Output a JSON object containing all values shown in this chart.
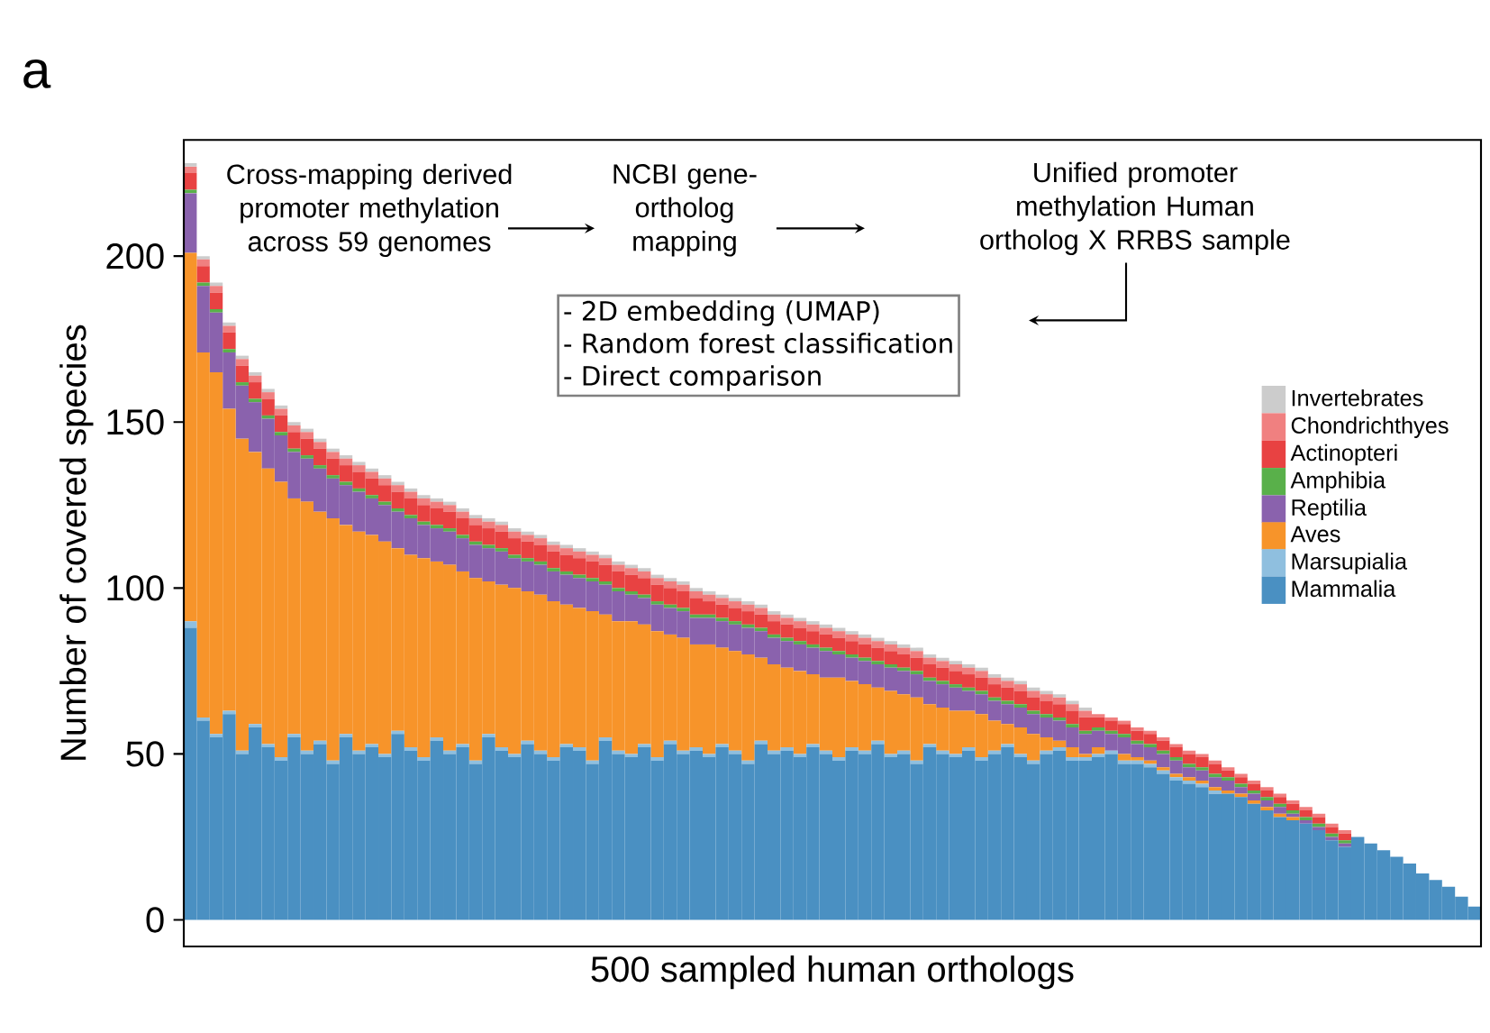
{
  "chart_data": {
    "type": "bar",
    "stacked": true,
    "xlabel": "500 sampled human orthologs",
    "ylabel": "Number of covered species",
    "categories": [
      null,
      null,
      null,
      null,
      null,
      null,
      null,
      null,
      null,
      null,
      null,
      null,
      null,
      null,
      null,
      null,
      null,
      null,
      null,
      null,
      null,
      null,
      null,
      null,
      null,
      null,
      null,
      null,
      null,
      null,
      null,
      null,
      null,
      null,
      null,
      null,
      null,
      null,
      null,
      null,
      null,
      null,
      null,
      null,
      null,
      null,
      null,
      null,
      null,
      null,
      null,
      null,
      null,
      null,
      null,
      null,
      null,
      null,
      null,
      null,
      null,
      null,
      null,
      null,
      null,
      null,
      null,
      null,
      null,
      null,
      null,
      null,
      null,
      null,
      null,
      null,
      null,
      null,
      null,
      null,
      null,
      null,
      null,
      null,
      null,
      null,
      null,
      null,
      null,
      null,
      null,
      null,
      null,
      null,
      null,
      null,
      null,
      null,
      null,
      null
    ],
    "series": [
      {
        "name": "Mammalia",
        "color": "#4a90c2",
        "values": [
          88,
          60,
          55,
          62,
          50,
          58,
          52,
          48,
          55,
          50,
          53,
          47,
          55,
          50,
          52,
          49,
          56,
          51,
          48,
          54,
          50,
          52,
          47,
          55,
          51,
          49,
          53,
          50,
          48,
          52,
          51,
          47,
          54,
          50,
          49,
          52,
          48,
          53,
          50,
          51,
          49,
          52,
          50,
          47,
          53,
          50,
          51,
          49,
          52,
          50,
          48,
          51,
          50,
          53,
          49,
          50,
          47,
          52,
          50,
          49,
          51,
          48,
          50,
          52,
          49,
          47,
          50,
          51,
          48,
          48,
          49,
          50,
          47,
          47,
          46,
          44,
          42,
          41,
          40,
          38,
          38,
          37,
          35,
          33,
          31,
          30,
          29,
          27,
          24,
          22,
          25,
          23,
          21,
          19,
          17,
          14,
          12,
          10,
          7,
          4
        ]
      },
      {
        "name": "Marsupialia",
        "color": "#8fbfdf",
        "values": [
          2,
          1,
          1,
          1,
          1,
          1,
          1,
          1,
          1,
          1,
          1,
          1,
          1,
          1,
          1,
          1,
          1,
          1,
          1,
          1,
          1,
          1,
          1,
          1,
          1,
          1,
          1,
          1,
          1,
          1,
          1,
          1,
          1,
          1,
          1,
          1,
          1,
          1,
          1,
          1,
          1,
          1,
          1,
          1,
          1,
          1,
          1,
          1,
          1,
          1,
          1,
          1,
          1,
          1,
          1,
          1,
          1,
          1,
          1,
          1,
          1,
          1,
          1,
          1,
          1,
          1,
          1,
          1,
          1,
          1,
          1,
          1,
          1,
          1,
          1,
          1,
          1,
          1,
          1,
          1,
          0,
          0,
          0,
          0,
          0,
          0,
          0,
          0,
          0,
          0,
          0,
          0,
          0,
          0,
          0,
          0,
          0,
          0,
          0,
          0
        ]
      },
      {
        "name": "Aves",
        "color": "#f7942a",
        "values": [
          111,
          110,
          109,
          91,
          94,
          82,
          83,
          83,
          71,
          75,
          69,
          73,
          63,
          66,
          63,
          64,
          55,
          58,
          60,
          53,
          56,
          52,
          55,
          46,
          49,
          50,
          45,
          47,
          47,
          42,
          42,
          45,
          37,
          39,
          40,
          36,
          38,
          32,
          34,
          31,
          33,
          29,
          30,
          32,
          25,
          26,
          24,
          25,
          21,
          22,
          24,
          20,
          20,
          16,
          19,
          17,
          19,
          12,
          13,
          13,
          11,
          13,
          9,
          6,
          8,
          8,
          4,
          2,
          3,
          1,
          2,
          0,
          2,
          1,
          1,
          1,
          1,
          1,
          1,
          1,
          1,
          1,
          1,
          1,
          1,
          1,
          0,
          0,
          0,
          0,
          0,
          0,
          0,
          0,
          0,
          0,
          0,
          0,
          0,
          0
        ]
      },
      {
        "name": "Reptilia",
        "color": "#8a62ad",
        "values": [
          18,
          20,
          18,
          17,
          16,
          15,
          15,
          14,
          14,
          13,
          13,
          12,
          12,
          12,
          11,
          11,
          11,
          11,
          10,
          10,
          10,
          10,
          10,
          10,
          10,
          9,
          9,
          9,
          9,
          9,
          9,
          9,
          9,
          9,
          8,
          8,
          8,
          8,
          8,
          8,
          8,
          8,
          8,
          8,
          8,
          8,
          8,
          8,
          8,
          8,
          7,
          7,
          7,
          7,
          7,
          7,
          7,
          7,
          7,
          7,
          6,
          6,
          6,
          6,
          6,
          6,
          6,
          6,
          6,
          6,
          5,
          5,
          5,
          4,
          4,
          4,
          4,
          3,
          3,
          3,
          3,
          2,
          2,
          2,
          2,
          1,
          1,
          1,
          1,
          1,
          0,
          0,
          0,
          0,
          0,
          0,
          0,
          0,
          0,
          0
        ]
      },
      {
        "name": "Amphibia",
        "color": "#59b04a",
        "values": [
          1,
          1,
          1,
          1,
          1,
          1,
          1,
          1,
          1,
          1,
          1,
          1,
          1,
          1,
          1,
          1,
          1,
          1,
          1,
          1,
          1,
          1,
          1,
          1,
          1,
          1,
          1,
          1,
          1,
          1,
          1,
          1,
          1,
          1,
          1,
          1,
          1,
          1,
          1,
          1,
          1,
          1,
          1,
          1,
          1,
          1,
          1,
          1,
          1,
          1,
          1,
          1,
          1,
          1,
          1,
          1,
          1,
          1,
          1,
          1,
          1,
          1,
          1,
          1,
          1,
          1,
          1,
          1,
          1,
          1,
          1,
          1,
          1,
          1,
          1,
          1,
          1,
          1,
          1,
          1,
          1,
          1,
          1,
          1,
          1,
          1,
          1,
          1,
          1,
          1,
          0,
          0,
          0,
          0,
          0,
          0,
          0,
          0,
          0,
          0
        ]
      },
      {
        "name": "Actinopteri",
        "color": "#e84242",
        "values": [
          5,
          5,
          5,
          5,
          5,
          5,
          5,
          5,
          5,
          5,
          5,
          5,
          5,
          5,
          5,
          5,
          5,
          5,
          5,
          5,
          5,
          5,
          5,
          5,
          5,
          5,
          5,
          5,
          5,
          5,
          5,
          5,
          5,
          5,
          5,
          5,
          5,
          5,
          5,
          5,
          4,
          4,
          4,
          4,
          4,
          4,
          4,
          4,
          4,
          4,
          4,
          4,
          4,
          4,
          4,
          4,
          4,
          4,
          4,
          4,
          4,
          4,
          4,
          4,
          4,
          4,
          4,
          4,
          4,
          4,
          3,
          3,
          3,
          3,
          3,
          3,
          3,
          3,
          3,
          3,
          2,
          2,
          2,
          2,
          2,
          2,
          2,
          2,
          2,
          2,
          0,
          0,
          0,
          0,
          0,
          0,
          0,
          0,
          0,
          0
        ]
      },
      {
        "name": "Chondrichthyes",
        "color": "#f08080",
        "values": [
          2,
          2,
          2,
          2,
          2,
          2,
          2,
          2,
          2,
          2,
          2,
          2,
          2,
          2,
          2,
          2,
          2,
          2,
          2,
          2,
          2,
          2,
          2,
          2,
          2,
          2,
          2,
          2,
          2,
          2,
          2,
          2,
          2,
          2,
          2,
          2,
          2,
          2,
          2,
          2,
          2,
          2,
          2,
          2,
          2,
          2,
          2,
          2,
          2,
          2,
          2,
          2,
          2,
          2,
          2,
          2,
          2,
          2,
          2,
          2,
          2,
          2,
          2,
          2,
          2,
          2,
          2,
          2,
          2,
          2,
          1,
          1,
          1,
          1,
          1,
          1,
          1,
          1,
          1,
          1,
          1,
          1,
          1,
          1,
          1,
          1,
          1,
          1,
          1,
          1,
          0,
          0,
          0,
          0,
          0,
          0,
          0,
          0,
          0,
          0
        ]
      },
      {
        "name": "Invertebrates",
        "color": "#cccccc",
        "values": [
          1,
          1,
          1,
          1,
          1,
          1,
          1,
          1,
          1,
          1,
          1,
          1,
          1,
          1,
          1,
          1,
          1,
          1,
          1,
          1,
          1,
          1,
          1,
          1,
          1,
          1,
          1,
          1,
          1,
          1,
          1,
          1,
          1,
          1,
          1,
          1,
          1,
          1,
          1,
          1,
          1,
          1,
          1,
          1,
          1,
          1,
          1,
          1,
          1,
          1,
          1,
          1,
          1,
          1,
          1,
          1,
          1,
          1,
          1,
          1,
          1,
          1,
          1,
          1,
          1,
          1,
          1,
          1,
          1,
          1,
          0,
          0,
          0,
          0,
          0,
          0,
          0,
          0,
          0,
          0,
          0,
          0,
          0,
          0,
          0,
          0,
          0,
          0,
          0,
          0,
          0,
          0,
          0,
          0,
          0,
          0,
          0,
          0,
          0,
          0
        ]
      }
    ],
    "ylim": [
      -8,
      235
    ],
    "yticks": [
      0,
      50,
      100,
      150,
      200
    ],
    "tick_labels": "y",
    "grid": false,
    "legend": "right",
    "annotations": [
      "a",
      "Cross-mapping derived promoter methylation across 59 genomes",
      "NCBI gene-ortholog mapping",
      "Unified promoter methylation Human ortholog X RRBS sample",
      "- 2D embedding (UMAP)",
      "- Random forest classification",
      "- Direct comparison"
    ]
  }
}
